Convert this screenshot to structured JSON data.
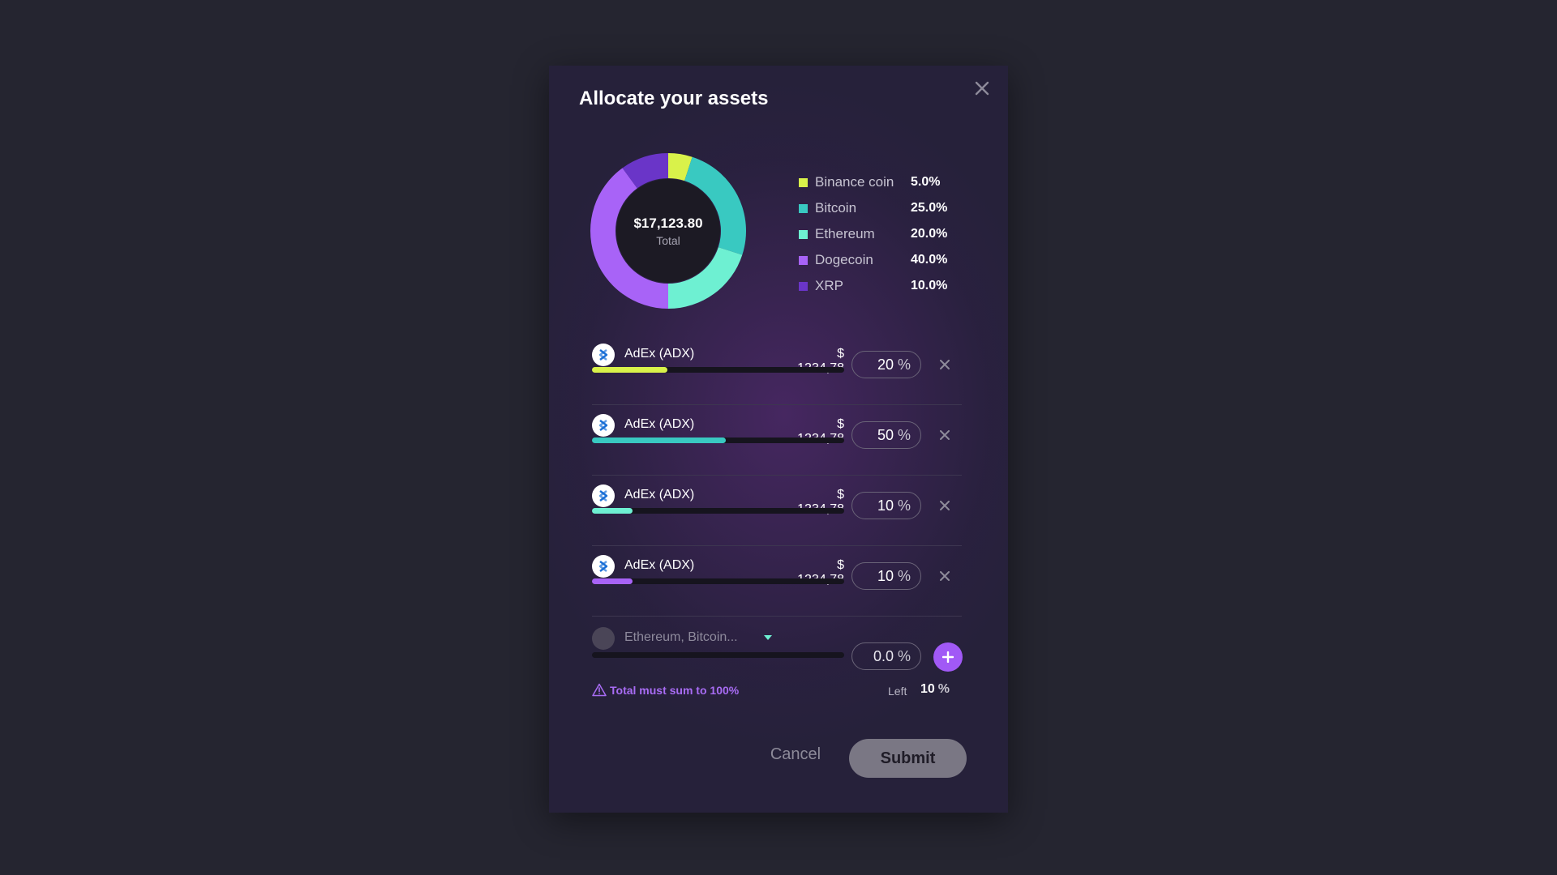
{
  "modal": {
    "title": "Allocate your assets",
    "close_icon": "close-icon"
  },
  "summary": {
    "total": "$17,123.80",
    "total_label": "Total"
  },
  "chart_data": {
    "type": "pie",
    "categories": [
      "Binance coin",
      "Bitcoin",
      "Ethereum",
      "Dogecoin",
      "XRP"
    ],
    "values": [
      5.0,
      25.0,
      20.0,
      40.0,
      10.0
    ],
    "colors": [
      "#d9f24a",
      "#39c9c1",
      "#6ef0d2",
      "#a863f7",
      "#6a35c8"
    ],
    "legend": [
      {
        "name": "Binance coin",
        "pct": "5.0%",
        "color": "#d9f24a"
      },
      {
        "name": "Bitcoin",
        "pct": "25.0%",
        "color": "#39c9c1"
      },
      {
        "name": "Ethereum",
        "pct": "20.0%",
        "color": "#6ef0d2"
      },
      {
        "name": "Dogecoin",
        "pct": "40.0%",
        "color": "#a863f7"
      },
      {
        "name": "XRP",
        "pct": "10.0%",
        "color": "#6a35c8"
      }
    ],
    "legend_placement": "right"
  },
  "assets": [
    {
      "name": "AdEx (ADX)",
      "value": "$ 1234,78",
      "pct": "20",
      "unit": "%",
      "fill": 0.3,
      "color": "#d9f24a",
      "icon": "adex-icon"
    },
    {
      "name": "AdEx (ADX)",
      "value": "$ 1234,78",
      "pct": "50",
      "unit": "%",
      "fill": 0.53,
      "color": "#39c9c1",
      "icon": "adex-icon"
    },
    {
      "name": "AdEx (ADX)",
      "value": "$ 1234,78",
      "pct": "10",
      "unit": "%",
      "fill": 0.16,
      "color": "#6ef0d2",
      "icon": "adex-icon"
    },
    {
      "name": "AdEx (ADX)",
      "value": "$ 1234,78",
      "pct": "10",
      "unit": "%",
      "fill": 0.16,
      "color": "#a863f7",
      "icon": "adex-icon"
    }
  ],
  "new_asset": {
    "select_placeholder": "Ethereum, Bitcoin...",
    "pct": "0.0",
    "unit": "%"
  },
  "footer": {
    "warning": "Total must sum to 100%",
    "left_label": "Left",
    "left_value": "10",
    "left_unit": "%",
    "cancel_label": "Cancel",
    "submit_label": "Submit"
  },
  "colors": {
    "accent": "#a159f6",
    "warning": "#a86cf4"
  }
}
